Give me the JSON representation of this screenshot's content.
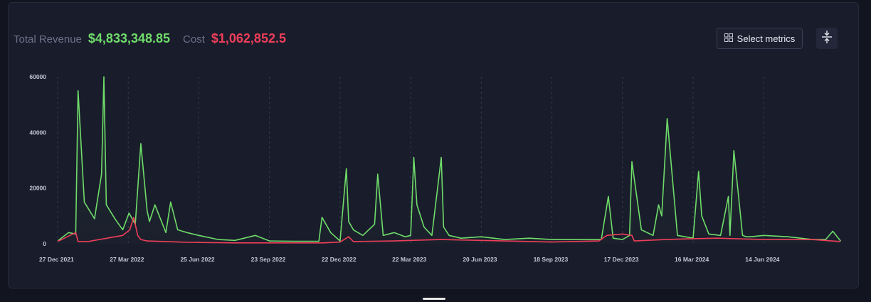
{
  "header": {
    "revenue_label": "Total Revenue",
    "revenue_value": "$4,833,348.85",
    "cost_label": "Cost",
    "cost_value": "$1,062,852.5"
  },
  "toolbar": {
    "select_metrics_label": "Select metrics",
    "select_metrics_icon": "grid-icon",
    "collapse_icon": "collapse-vertical-icon"
  },
  "colors": {
    "revenue": "#6fdc6a",
    "cost": "#ef3e5a",
    "background": "#191c2b"
  },
  "chart_data": {
    "type": "line",
    "title": "",
    "xlabel": "",
    "ylabel": "",
    "ylim": [
      0,
      60000
    ],
    "y_ticks": [
      "0",
      "20000",
      "40000",
      "60000"
    ],
    "x_ticks": [
      "27 Dec 2021",
      "27 Mar 2022",
      "25 Jun 2022",
      "23 Sep 2022",
      "22 Dec 2022",
      "22 Mar 2023",
      "20 Jun 2023",
      "18 Sep 2023",
      "17 Dec 2023",
      "16 Mar 2024",
      "14 Jun 2024"
    ],
    "grid": "vertical-dashed",
    "series": [
      {
        "key": "revenue",
        "x": [
          "27 Dec 2021",
          "10 Jan 2022",
          "19 Jan 2022",
          "22 Jan 2022",
          "30 Jan 2022",
          "12 Feb 2022",
          "21 Feb 2022",
          "24 Feb 2022",
          "27 Feb 2022",
          "10 Mar 2022",
          "20 Mar 2022",
          "28 Mar 2022",
          "5 Apr 2022",
          "12 Apr 2022",
          "20 Apr 2022",
          "23 Apr 2022",
          "30 Apr 2022",
          "14 May 2022",
          "20 May 2022",
          "29 May 2022",
          "10 Jun 2022",
          "25 Jun 2022",
          "20 Jul 2022",
          "10 Aug 2022",
          "5 Sep 2022",
          "23 Sep 2022",
          "25 Oct 2022",
          "25 Nov 2022",
          "29 Nov 2022",
          "10 Dec 2022",
          "22 Dec 2022",
          "30 Dec 2022",
          "2 Jan 2023",
          "8 Jan 2023",
          "20 Jan 2023",
          "4 Feb 2023",
          "8 Feb 2023",
          "15 Feb 2023",
          "1 Mar 2023",
          "15 Mar 2023",
          "22 Mar 2023",
          "26 Mar 2023",
          "30 Mar 2023",
          "8 Apr 2023",
          "18 Apr 2023",
          "30 Apr 2023",
          "3 May 2023",
          "10 May 2023",
          "25 May 2023",
          "20 Jun 2023",
          "20 Jul 2023",
          "20 Aug 2023",
          "18 Sep 2023",
          "20 Oct 2023",
          "20 Nov 2023",
          "29 Nov 2023",
          "5 Dec 2023",
          "17 Dec 2023",
          "26 Dec 2023",
          "29 Dec 2023",
          "10 Jan 2024",
          "25 Jan 2024",
          "1 Feb 2024",
          "5 Feb 2024",
          "12 Feb 2024",
          "25 Feb 2024",
          "16 Mar 2024",
          "23 Mar 2024",
          "27 Mar 2024",
          "5 Apr 2024",
          "20 Apr 2024",
          "30 Apr 2024",
          "2 May 2024",
          "7 May 2024",
          "18 May 2024",
          "23 May 2024",
          "28 May 2024",
          "14 Jun 2024",
          "15 Jul 2024",
          "15 Aug 2024",
          "1 Sep 2024",
          "10 Sep 2024",
          "20 Sep 2024"
        ],
        "y": [
          1000,
          4000,
          3500,
          55000,
          15000,
          9000,
          25000,
          60000,
          14000,
          9000,
          5000,
          11000,
          7000,
          36000,
          12000,
          8000,
          14000,
          4000,
          15000,
          5000,
          4000,
          3000,
          1500,
          1200,
          3000,
          1000,
          900,
          900,
          9500,
          4000,
          1000,
          27000,
          8000,
          5000,
          3000,
          7000,
          25000,
          3000,
          4000,
          2500,
          3000,
          31000,
          14000,
          6000,
          3000,
          31000,
          6000,
          3000,
          2000,
          2500,
          1500,
          2000,
          1500,
          1500,
          1500,
          17000,
          2000,
          1500,
          3000,
          29500,
          5000,
          3000,
          14000,
          10000,
          45000,
          3000,
          2000,
          26000,
          10000,
          3500,
          3000,
          17000,
          3000,
          33500,
          3000,
          2500,
          2500,
          3000,
          2500,
          1500,
          1500,
          4500,
          1000
        ]
      },
      {
        "key": "cost",
        "x": [
          "27 Dec 2021",
          "30 Dec 2021",
          "19 Jan 2022",
          "22 Jan 2022",
          "4 Feb 2022",
          "20 Mar 2022",
          "29 Mar 2022",
          "3 Apr 2022",
          "8 Apr 2022",
          "12 Apr 2022",
          "20 Apr 2022",
          "10 Jun 2022",
          "10 Aug 2022",
          "1 Oct 2022",
          "1 Dec 2022",
          "22 Dec 2022",
          "2 Jan 2023",
          "8 Jan 2023",
          "1 Mar 2023",
          "22 Mar 2023",
          "30 Apr 2023",
          "20 Jun 2023",
          "18 Sep 2023",
          "17 Nov 2023",
          "27 Nov 2023",
          "17 Dec 2023",
          "29 Dec 2023",
          "1 Jan 2024",
          "10 Feb 2024",
          "16 Mar 2024",
          "16 Apr 2024",
          "14 Jun 2024",
          "15 Aug 2024",
          "20 Sep 2024"
        ],
        "y": [
          1000,
          1200,
          4000,
          800,
          800,
          3000,
          5000,
          9500,
          3000,
          1500,
          1000,
          500,
          300,
          300,
          300,
          600,
          2500,
          800,
          1000,
          1200,
          1500,
          1200,
          600,
          1000,
          3000,
          3500,
          3000,
          1000,
          1500,
          1800,
          2000,
          1500,
          1500,
          800
        ]
      }
    ]
  }
}
